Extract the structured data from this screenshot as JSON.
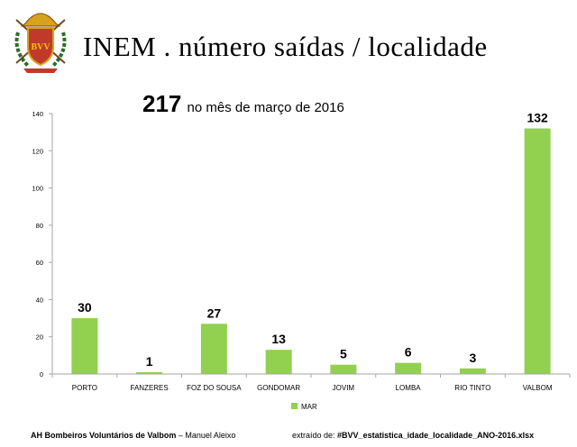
{
  "page": {
    "title": "INEM . número saídas / localidade",
    "logo_text": "BVV"
  },
  "footer": {
    "org": "AH Bombeiros Voluntários de Valbom",
    "sep": " – ",
    "author": "Manuel Aleixo",
    "source_prefix": "extraído de: ",
    "source_file": "#BVV_estatistica_idade_localidade_ANO-2016.xlsx"
  },
  "colors": {
    "bar": "#92d050",
    "axis": "#a6a6a6",
    "text": "#000000"
  },
  "chart_data": {
    "type": "bar",
    "title_number": "217",
    "title_text": " no mês de março de 2016",
    "categories": [
      "PORTO",
      "FANZERES",
      "FOZ DO SOUSA",
      "GONDOMAR",
      "JOVIM",
      "LOMBA",
      "RIO TINTO",
      "VALBOM"
    ],
    "series": [
      {
        "name": "MAR",
        "values": [
          30,
          1,
          27,
          13,
          5,
          6,
          3,
          132
        ]
      }
    ],
    "ylim": [
      0,
      140
    ],
    "yticks": [
      0,
      20,
      40,
      60,
      80,
      100,
      120,
      140
    ],
    "xlabel": "",
    "ylabel": "",
    "legend": "bottom"
  }
}
